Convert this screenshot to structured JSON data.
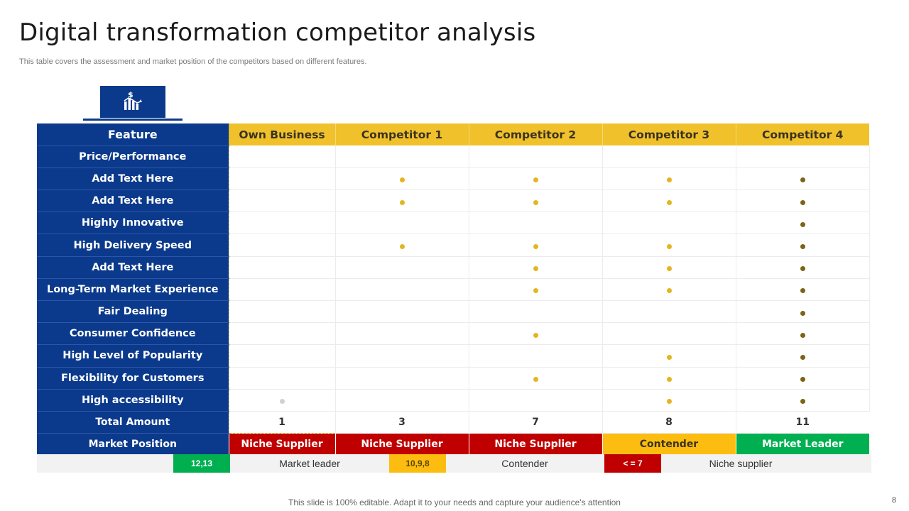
{
  "title": "Digital transformation competitor analysis",
  "subtitle": "This table covers the assessment and market position of the competitors based on different features.",
  "icon": "chart-dollar-icon",
  "colors": {
    "navy": "#0b3a8c",
    "yellow": "#f0c12b",
    "red": "#c00000",
    "orange": "#fdbd10",
    "green": "#00b050",
    "dot_gold": "#e6b420",
    "dot_olive": "#7b6415"
  },
  "table": {
    "feature_header": "Feature",
    "columns": [
      "Own Business",
      "Competitor 1",
      "Competitor 2",
      "Competitor 3",
      "Competitor 4"
    ],
    "rows": [
      {
        "feature": "Price/Performance",
        "marks": [
          "",
          "",
          "",
          "",
          ""
        ]
      },
      {
        "feature": "Add Text Here",
        "marks": [
          "",
          "gold",
          "gold",
          "gold",
          "olive"
        ]
      },
      {
        "feature": "Add Text Here",
        "marks": [
          "",
          "gold",
          "gold",
          "gold",
          "olive"
        ]
      },
      {
        "feature": "Highly Innovative",
        "marks": [
          "",
          "",
          "",
          "",
          "olive"
        ]
      },
      {
        "feature": "High Delivery Speed",
        "marks": [
          "",
          "gold",
          "gold",
          "gold",
          "olive"
        ]
      },
      {
        "feature": "Add Text Here",
        "marks": [
          "",
          "",
          "gold",
          "gold",
          "olive"
        ]
      },
      {
        "feature": "Long-Term Market Experience",
        "marks": [
          "",
          "",
          "gold",
          "gold",
          "olive"
        ]
      },
      {
        "feature": "Fair Dealing",
        "marks": [
          "",
          "",
          "",
          "",
          "olive"
        ]
      },
      {
        "feature": "Consumer Confidence",
        "marks": [
          "",
          "",
          "gold",
          "",
          "olive"
        ]
      },
      {
        "feature": "High Level of Popularity",
        "marks": [
          "",
          "",
          "",
          "gold",
          "olive"
        ]
      },
      {
        "feature": "Flexibility for Customers",
        "marks": [
          "",
          "",
          "gold",
          "gold",
          "olive"
        ]
      },
      {
        "feature": "High accessibility",
        "marks": [
          "grey",
          "",
          "",
          "gold",
          "olive"
        ]
      }
    ],
    "total_label": "Total Amount",
    "totals": [
      "1",
      "3",
      "7",
      "8",
      "11"
    ],
    "market_label": "Market Position",
    "market_positions": [
      {
        "label": "Niche Supplier",
        "kind": "niche"
      },
      {
        "label": "Niche Supplier",
        "kind": "niche"
      },
      {
        "label": "Niche Supplier",
        "kind": "niche"
      },
      {
        "label": "Contender",
        "kind": "contender"
      },
      {
        "label": "Market Leader",
        "kind": "leader"
      }
    ]
  },
  "legend": {
    "leader_range": "12,13",
    "leader_text": "Market leader",
    "contender_range": "10,9,8",
    "contender_text": "Contender",
    "niche_range": "< = 7",
    "niche_text": "Niche supplier"
  },
  "footer": "This slide is 100% editable. Adapt it to your needs and capture your audience's attention",
  "page_number": "8"
}
